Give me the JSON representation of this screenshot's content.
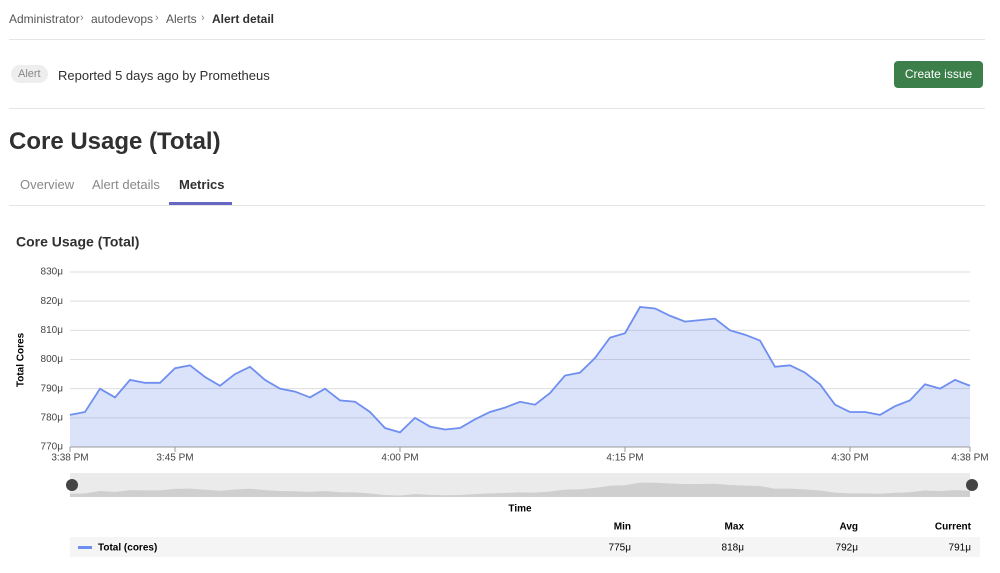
{
  "breadcrumbs": [
    "Administrator",
    "autodevops",
    "Alerts",
    "Alert detail"
  ],
  "header": {
    "badge": "Alert",
    "reported": "Reported 5 days ago by Prometheus",
    "button": "Create issue"
  },
  "title": "Core Usage (Total)",
  "tabs": [
    "Overview",
    "Alert details",
    "Metrics"
  ],
  "chart_data": {
    "type": "area",
    "title": "Core Usage (Total)",
    "y_label": "Total Cores",
    "x_label": "Time",
    "x": [
      "3:38 PM",
      "3:39 PM",
      "3:40 PM",
      "3:41 PM",
      "3:42 PM",
      "3:43 PM",
      "3:44 PM",
      "3:45 PM",
      "3:46 PM",
      "3:47 PM",
      "3:48 PM",
      "3:49 PM",
      "3:50 PM",
      "3:51 PM",
      "3:52 PM",
      "3:53 PM",
      "3:54 PM",
      "3:55 PM",
      "3:56 PM",
      "3:57 PM",
      "3:58 PM",
      "3:59 PM",
      "4:00 PM",
      "4:01 PM",
      "4:02 PM",
      "4:03 PM",
      "4:04 PM",
      "4:05 PM",
      "4:06 PM",
      "4:07 PM",
      "4:08 PM",
      "4:09 PM",
      "4:10 PM",
      "4:11 PM",
      "4:12 PM",
      "4:13 PM",
      "4:14 PM",
      "4:15 PM",
      "4:16 PM",
      "4:17 PM",
      "4:18 PM",
      "4:19 PM",
      "4:20 PM",
      "4:21 PM",
      "4:22 PM",
      "4:23 PM",
      "4:24 PM",
      "4:25 PM",
      "4:26 PM",
      "4:27 PM",
      "4:28 PM",
      "4:29 PM",
      "4:30 PM",
      "4:31 PM",
      "4:32 PM",
      "4:33 PM",
      "4:34 PM",
      "4:35 PM",
      "4:36 PM",
      "4:37 PM",
      "4:38 PM"
    ],
    "xticks": [
      "3:38 PM",
      "3:45 PM",
      "4:00 PM",
      "4:15 PM",
      "4:30 PM",
      "4:38 PM"
    ],
    "series": [
      {
        "name": "Total (cores)",
        "color": "#6e8ef0",
        "values": [
          781,
          782,
          790,
          787,
          793,
          792,
          792,
          797,
          798,
          794,
          791,
          795,
          797.5,
          793,
          790,
          789,
          787,
          790,
          786,
          785.5,
          782,
          776.5,
          775,
          780,
          777,
          776,
          776.5,
          779.5,
          782,
          783.5,
          785.5,
          784.5,
          788.5,
          794.5,
          795.5,
          800.5,
          807.5,
          809,
          818,
          817.5,
          815,
          813,
          813.5,
          814,
          810,
          808.5,
          806.5,
          797.5,
          798,
          795.5,
          791.5,
          784.5,
          782,
          782,
          781,
          784,
          786,
          791.5,
          790,
          793,
          791
        ]
      }
    ],
    "ylim": [
      770,
      830
    ],
    "yticks": [
      {
        "value": 770,
        "label": "770μ"
      },
      {
        "value": 780,
        "label": "780μ"
      },
      {
        "value": 790,
        "label": "790μ"
      },
      {
        "value": 800,
        "label": "800μ"
      },
      {
        "value": 810,
        "label": "810μ"
      },
      {
        "value": 820,
        "label": "820μ"
      },
      {
        "value": 830,
        "label": "830μ"
      }
    ],
    "grid": true,
    "summary": {
      "headers": [
        "Min",
        "Max",
        "Avg",
        "Current"
      ],
      "values": [
        775,
        818,
        792,
        791
      ],
      "value_labels": [
        "775μ",
        "818μ",
        "792μ",
        "791μ"
      ]
    }
  }
}
